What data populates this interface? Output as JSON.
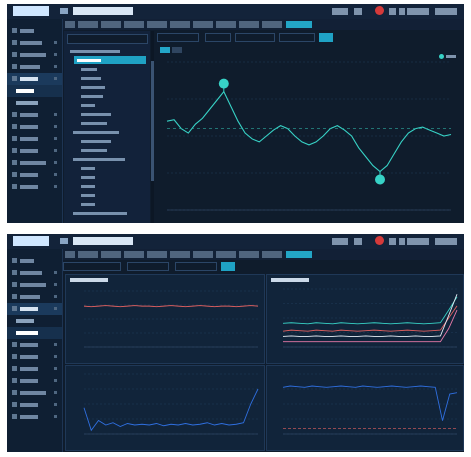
{
  "app": {
    "title": ""
  },
  "colors": {
    "bg": "#0f1c2c",
    "accent": "#23a6c8",
    "teal": "#37d2c6",
    "red": "#e06060",
    "blue": "#2f6fe0",
    "white": "#e8eef6",
    "pink": "#e87aa8"
  },
  "chart_top": {
    "type": "line",
    "title": "",
    "y": [
      60,
      61,
      55,
      52,
      58,
      62,
      68,
      74,
      80,
      70,
      60,
      52,
      48,
      46,
      50,
      54,
      57,
      55,
      50,
      46,
      44,
      46,
      50,
      55,
      57,
      54,
      50,
      42,
      36,
      30,
      26,
      30,
      38,
      46,
      52,
      55,
      56,
      54,
      52,
      50,
      51
    ],
    "ylim": [
      0,
      100
    ],
    "max_marker_label": "",
    "min_marker_label": ""
  },
  "chart_bottom_tl": {
    "type": "line",
    "series": [
      {
        "values": [
          73,
          72,
          73,
          74,
          73,
          72,
          73,
          74,
          73,
          73,
          72,
          73,
          74,
          73,
          72,
          73,
          74,
          73,
          72,
          73,
          73,
          72,
          73,
          74,
          73
        ]
      }
    ],
    "ylim": [
      0,
      100
    ]
  },
  "chart_bottom_tr": {
    "type": "line",
    "series": [
      {
        "color": "teal",
        "values": [
          45,
          46,
          45,
          44,
          46,
          45,
          44,
          46,
          45,
          44,
          45,
          46,
          45,
          44,
          45,
          46,
          45,
          44,
          45,
          46,
          70,
          95
        ]
      },
      {
        "color": "red",
        "values": [
          30,
          32,
          31,
          30,
          32,
          31,
          30,
          32,
          31,
          30,
          31,
          32,
          31,
          30,
          31,
          32,
          31,
          30,
          31,
          32,
          55,
          78
        ]
      },
      {
        "color": "white",
        "values": [
          20,
          21,
          20,
          20,
          21,
          20,
          20,
          21,
          20,
          20,
          21,
          20,
          20,
          21,
          20,
          20,
          21,
          20,
          20,
          21,
          60,
          100
        ]
      },
      {
        "color": "pink",
        "values": [
          10,
          10,
          10,
          10,
          10,
          10,
          10,
          10,
          10,
          10,
          10,
          10,
          10,
          10,
          10,
          10,
          10,
          10,
          10,
          10,
          35,
          70
        ]
      }
    ],
    "ylim": [
      0,
      110
    ]
  },
  "chart_bottom_bl": {
    "type": "line",
    "series": [
      {
        "values": [
          35,
          5,
          18,
          12,
          15,
          10,
          14,
          12,
          13,
          12,
          14,
          11,
          13,
          12,
          14,
          12,
          13,
          15,
          12,
          14,
          12,
          13,
          15,
          40,
          60
        ]
      }
    ],
    "ylim": [
      0,
      80
    ]
  },
  "chart_bottom_br": {
    "type": "line",
    "series": [
      {
        "values": [
          70,
          72,
          71,
          70,
          72,
          71,
          70,
          71,
          72,
          71,
          70,
          72,
          71,
          70,
          71,
          72,
          71,
          70,
          71,
          72,
          71,
          70,
          20,
          60,
          62
        ]
      }
    ],
    "ylim": [
      0,
      90
    ],
    "threshold": 8
  }
}
